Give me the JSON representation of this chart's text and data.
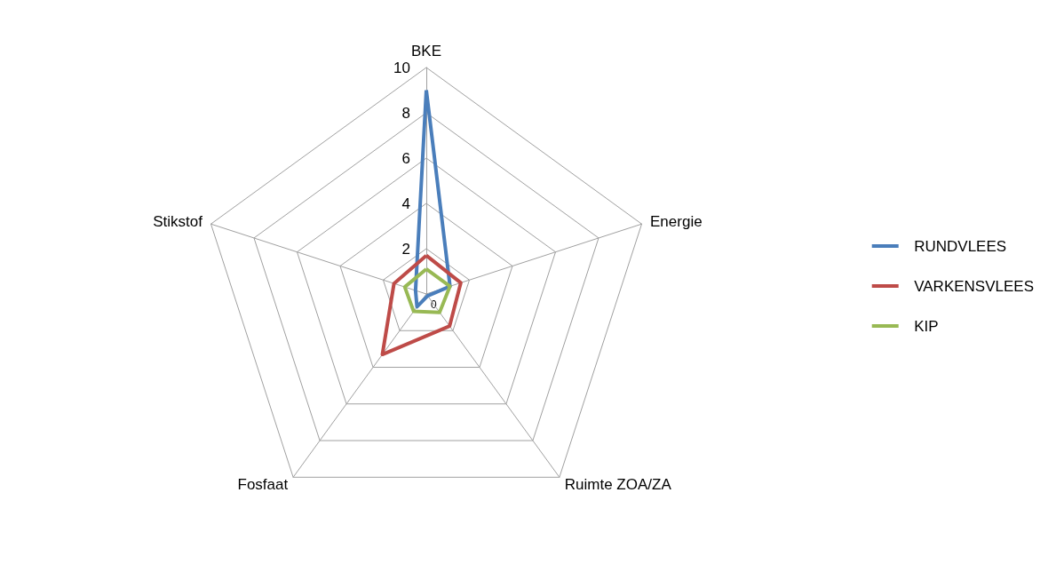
{
  "chart_data": {
    "type": "radar",
    "categories": [
      "BKE",
      "Energie",
      "Ruimte ZOA/ZA",
      "Fosfaat",
      "Stikstof"
    ],
    "ylim": [
      0,
      10
    ],
    "yticks": [
      0,
      2,
      4,
      6,
      8,
      10
    ],
    "legend": "right",
    "marker": "none",
    "line_style": "solid",
    "series": [
      {
        "name": "RUNDVLEES",
        "color": "#4a7ebb",
        "values": [
          9.0,
          1.1,
          0.1,
          0.7,
          0.5
        ]
      },
      {
        "name": "VARKENSVLEES",
        "color": "#be4b48",
        "values": [
          1.7,
          1.6,
          1.75,
          3.3,
          1.5
        ]
      },
      {
        "name": "KIP",
        "color": "#98b954",
        "values": [
          1.1,
          1.1,
          1.0,
          0.95,
          1.0
        ]
      }
    ]
  }
}
